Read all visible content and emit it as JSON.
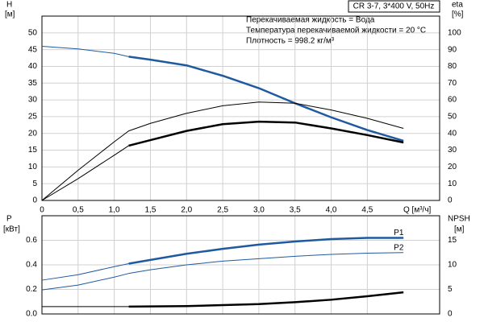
{
  "chart_data": [
    {
      "type": "line",
      "ylabel": [
        "H",
        "[м]"
      ],
      "y2label": [
        "eta",
        "[%]"
      ],
      "xlabel": "Q [м³/ч]",
      "annotations": [
        "CR 3-7, 3*400 V, 50Hz",
        "Перекачиваемая жидкость = Вода",
        "Температура перекачиваемой жидкости = 20 °C",
        "Плотность = 998.2 кг/м³"
      ],
      "xlim": [
        0,
        5.5
      ],
      "xticks": [
        0,
        {
          "value": 0.5,
          "label": "0,5"
        },
        {
          "value": 1,
          "label": "1,0"
        },
        {
          "value": 1.5,
          "label": "1,5"
        },
        {
          "value": 2,
          "label": "2,0"
        },
        {
          "value": 2.5,
          "label": "2,5"
        },
        {
          "value": 3,
          "label": "3,0"
        },
        {
          "value": 3.5,
          "label": "3,5"
        },
        {
          "value": 4,
          "label": "4,0"
        },
        {
          "value": 4.5,
          "label": "4,5"
        }
      ],
      "ylim": [
        0,
        55
      ],
      "yticks": [
        0,
        5,
        10,
        15,
        20,
        25,
        30,
        35,
        40,
        45,
        50
      ],
      "y2lim": [
        0,
        110
      ],
      "y2ticks": [
        0,
        10,
        20,
        30,
        40,
        50,
        60,
        70,
        80,
        90,
        100
      ],
      "grid": true,
      "series": [
        {
          "color": "#1f5aa0",
          "width": 1,
          "x": [
            0,
            0.5,
            1,
            1.2
          ],
          "values": [
            46,
            45.2,
            43.9,
            42.9
          ]
        },
        {
          "color": "#1f5aa0",
          "width": 2.5,
          "x": [
            1.2,
            1.5,
            2,
            2.5,
            3,
            3.5,
            4,
            4.5,
            5
          ],
          "values": [
            42.9,
            42,
            40.3,
            37.2,
            33.5,
            29,
            24.8,
            21,
            17.8
          ]
        },
        {
          "color": "#000000",
          "width": 1,
          "axis": "y2",
          "x": [
            0,
            0.5,
            1,
            1.2,
            1.5,
            2,
            2.5,
            3,
            3.5,
            4,
            4.5,
            5
          ],
          "values": [
            0,
            18,
            35,
            41.5,
            46,
            52,
            56.5,
            58.7,
            58,
            54,
            49,
            43
          ]
        },
        {
          "color": "#000000",
          "width": 1,
          "axis": "y2",
          "x": [
            0,
            0.5,
            1,
            1.2
          ],
          "values": [
            0,
            13,
            27,
            32.7
          ]
        },
        {
          "color": "#000000",
          "width": 2.5,
          "axis": "y2",
          "x": [
            1.2,
            1.5,
            2,
            2.5,
            3,
            3.5,
            4,
            4.5,
            5
          ],
          "values": [
            32.7,
            36,
            41.5,
            45.5,
            47,
            46.5,
            43,
            39,
            34.6
          ]
        }
      ]
    },
    {
      "type": "line",
      "ylabel": [
        "P",
        "[кВт]"
      ],
      "y2label": [
        "NPSH",
        "[м]"
      ],
      "ylim": [
        0,
        0.8
      ],
      "yticks": [
        {
          "value": 0,
          "label": "0.0"
        },
        0.2,
        0.4,
        0.6
      ],
      "y2lim": [
        0,
        20
      ],
      "y2ticks": [
        0,
        5,
        10,
        15
      ],
      "grid": true,
      "series": [
        {
          "color": "#1f5aa0",
          "width": 1,
          "x": [
            0,
            0.5,
            1,
            1.2
          ],
          "values": [
            0.275,
            0.32,
            0.385,
            0.41
          ]
        },
        {
          "name": "P1",
          "color": "#1f5aa0",
          "width": 2.5,
          "x": [
            1.2,
            1.5,
            2,
            2.5,
            3,
            3.5,
            4,
            4.5,
            5
          ],
          "values": [
            0.41,
            0.44,
            0.49,
            0.53,
            0.565,
            0.59,
            0.61,
            0.62,
            0.62
          ]
        },
        {
          "name": "P2",
          "color": "#1f5aa0",
          "width": 1,
          "x": [
            0,
            0.5,
            1,
            1.2,
            1.5,
            2,
            2.5,
            3,
            3.5,
            4,
            4.5,
            5
          ],
          "values": [
            0.196,
            0.235,
            0.3,
            0.33,
            0.36,
            0.4,
            0.43,
            0.45,
            0.47,
            0.485,
            0.495,
            0.5
          ]
        },
        {
          "color": "#000000",
          "width": 1,
          "axis": "y2",
          "x": [
            0,
            1.2
          ],
          "values": [
            1.5,
            1.5
          ]
        },
        {
          "color": "#000000",
          "width": 2.5,
          "axis": "y2",
          "x": [
            1.2,
            2,
            2.5,
            3,
            3.5,
            4,
            4.5,
            5
          ],
          "values": [
            1.5,
            1.6,
            1.8,
            2.0,
            2.4,
            2.9,
            3.6,
            4.4
          ]
        }
      ]
    }
  ]
}
